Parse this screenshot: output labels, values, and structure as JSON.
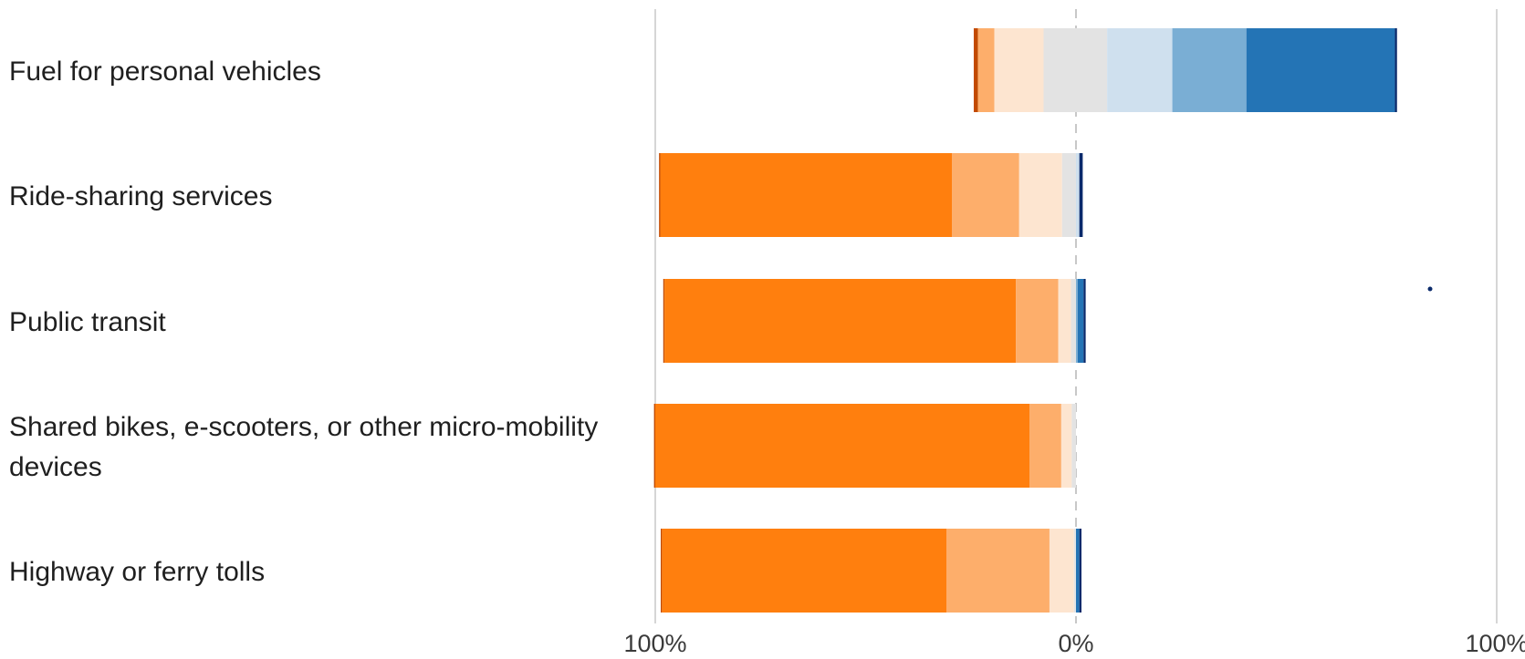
{
  "chart_data": {
    "type": "bar",
    "orientation": "horizontal",
    "stacking": "diverging",
    "title": "",
    "xlabel": "",
    "ylabel": "",
    "xlim": [
      -100,
      100
    ],
    "x_ticks": [
      {
        "value": -100,
        "label": "100%"
      },
      {
        "value": 0,
        "label": "0%"
      },
      {
        "value": 100,
        "label": "100%"
      }
    ],
    "gridlines": "vertical at tick positions; dashed at 0%",
    "legend": "none",
    "categories": [
      [
        "Fuel for personal vehicles"
      ],
      [
        "Ride-sharing services"
      ],
      [
        "Public transit"
      ],
      [
        "Shared bikes, e-scooters, or other micro-mobility",
        "devices"
      ],
      [
        "Highway or ferry tolls"
      ]
    ],
    "series": [
      {
        "color": "#c24a00",
        "side": "negative",
        "values": [
          1.0,
          0.3,
          0.3,
          0.3,
          0.3
        ]
      },
      {
        "color": "#ff7f0e",
        "side": "negative",
        "values": [
          0.0,
          69.3,
          83.5,
          89.0,
          67.6
        ]
      },
      {
        "color": "#fdae6b",
        "side": "negative",
        "values": [
          3.9,
          16.0,
          10.1,
          7.5,
          24.5
        ]
      },
      {
        "color": "#fde5d0",
        "side": "negative",
        "values": [
          11.7,
          10.2,
          3.0,
          2.5,
          5.8
        ]
      },
      {
        "color": "#e3e3e3",
        "side": "negative",
        "values": [
          7.7,
          3.3,
          1.2,
          1.0,
          0.5
        ]
      },
      {
        "color": "#e3e3e3",
        "side": "positive",
        "values": [
          7.4,
          0.0,
          0.0,
          0.0,
          0.0
        ]
      },
      {
        "color": "#cfe0ee",
        "side": "positive",
        "values": [
          15.5,
          0.8,
          0.0,
          0.0,
          0.0
        ]
      },
      {
        "color": "#7aaed4",
        "side": "positive",
        "values": [
          17.6,
          0.0,
          0.4,
          0.0,
          0.0
        ]
      },
      {
        "color": "#2474b5",
        "side": "positive",
        "values": [
          35.3,
          0.0,
          1.4,
          0.0,
          0.8
        ]
      },
      {
        "color": "#0a2a6b",
        "side": "positive",
        "values": [
          0.5,
          0.8,
          0.5,
          0.0,
          0.5
        ]
      }
    ]
  }
}
